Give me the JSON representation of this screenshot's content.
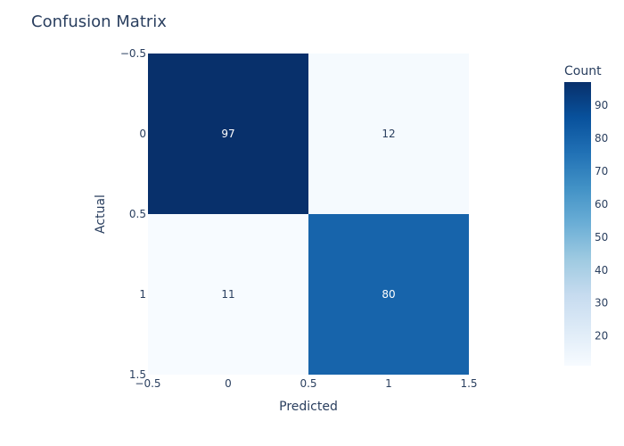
{
  "chart_data": {
    "type": "heatmap",
    "title": "Confusion Matrix",
    "xlabel": "Predicted",
    "ylabel": "Actual",
    "x_categories": [
      "0",
      "1"
    ],
    "y_categories": [
      "0",
      "1"
    ],
    "z": [
      [
        97,
        12
      ],
      [
        11,
        80
      ]
    ],
    "x_ticks": [
      "−0.5",
      "0",
      "0.5",
      "1",
      "1.5"
    ],
    "y_ticks": [
      "−0.5",
      "0",
      "0.5",
      "1",
      "1.5"
    ],
    "colorscale": "Blues",
    "colors": {
      "low": "#f7fbff",
      "high": "#08306b",
      "text": "#2a3f5f"
    },
    "colorbar": {
      "title": "Count",
      "range": [
        11,
        97
      ],
      "ticks": [
        20,
        30,
        40,
        50,
        60,
        70,
        80,
        90
      ]
    }
  }
}
